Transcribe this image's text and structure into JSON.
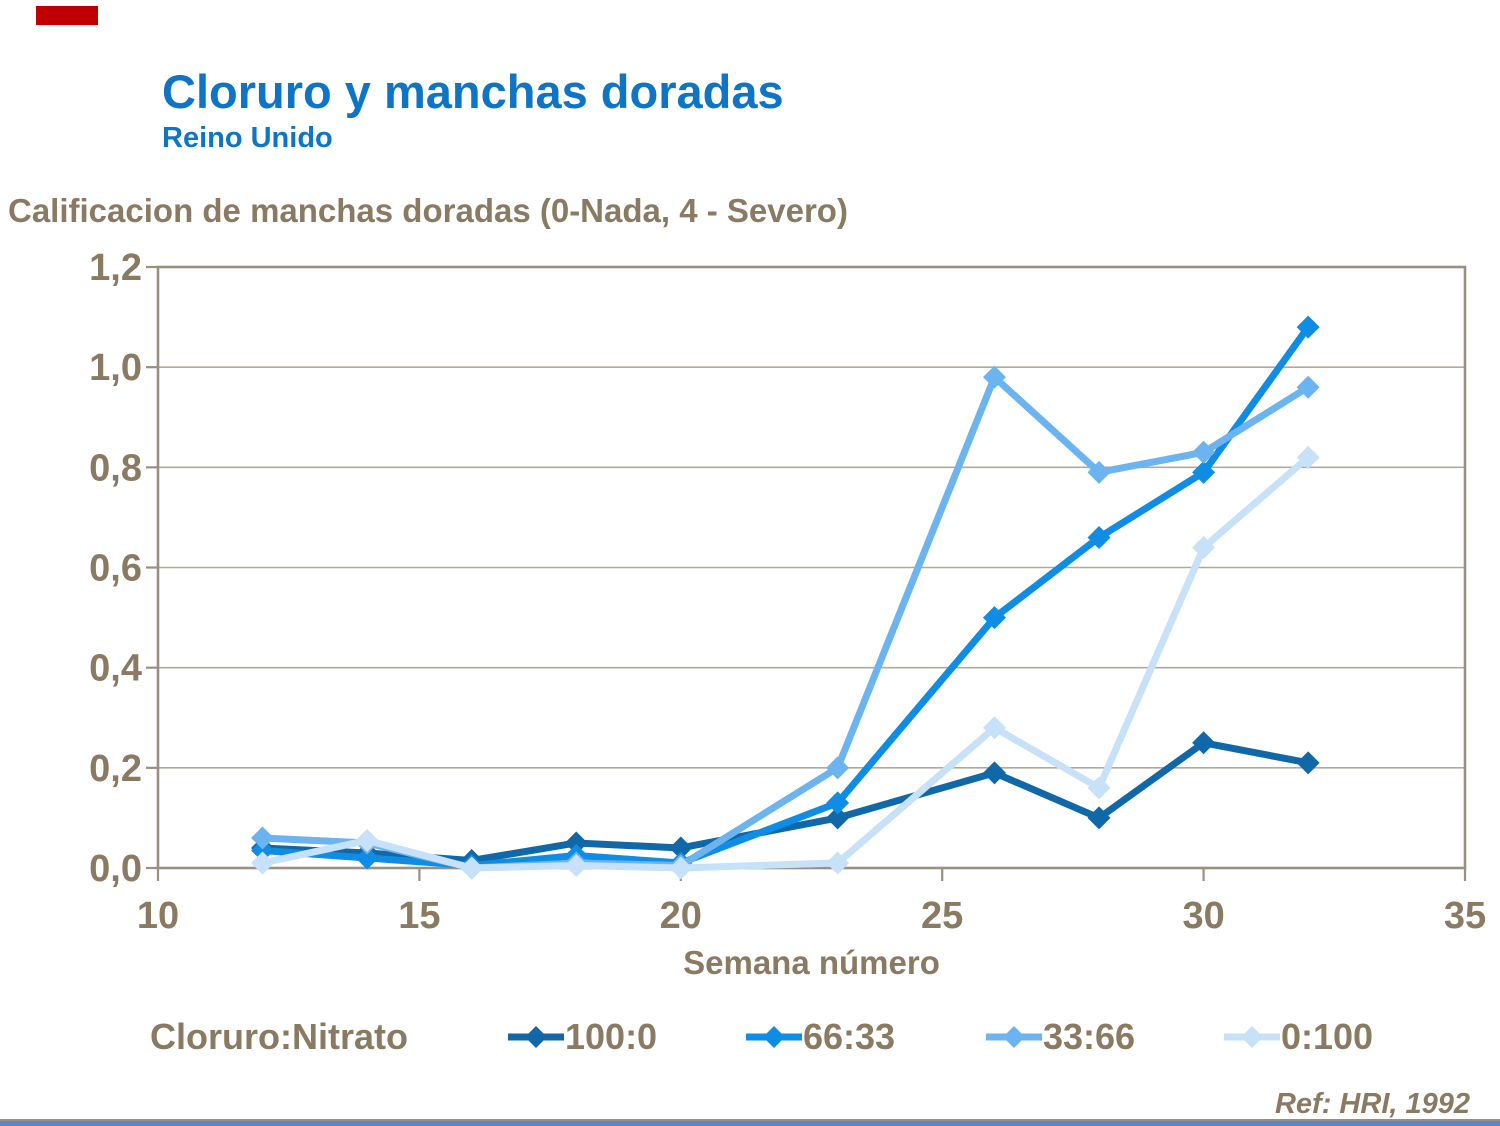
{
  "slide": {
    "title": "Cloruro y manchas doradas",
    "subtitle": "Reino Unido",
    "heading": "Calificacion de manchas doradas (0-Nada, 4 - Severo)",
    "reference": "Ref: HRI, 1992"
  },
  "colors": {
    "title_blue": "#0D74C6",
    "text_brown": "#8A7A62",
    "axis_border": "#9A9082",
    "gridline": "#B1A99E",
    "red_accent_bar": "#C00000",
    "bottom_rule": "#8F8F8F",
    "bottom_bar": "#5E86C0"
  },
  "chart_data": {
    "type": "line",
    "title": "Calificacion de manchas doradas (0-Nada, 4 - Severo)",
    "xlabel": "Semana número",
    "ylabel": "",
    "legend_title": "Cloruro:Nitrato",
    "legend_position": "bottom",
    "grid": "horizontal",
    "marker": "diamond",
    "xlim": [
      10,
      35
    ],
    "ylim": [
      0,
      1.2
    ],
    "xticks": [
      10,
      15,
      20,
      25,
      30,
      35
    ],
    "yticks": [
      0.0,
      0.2,
      0.4,
      0.6,
      0.8,
      1.0,
      1.2
    ],
    "decimal_separator": ",",
    "x": [
      12,
      14,
      16,
      18,
      20,
      23,
      26,
      28,
      30,
      32
    ],
    "series": [
      {
        "name": "100:0",
        "color": "#1168A8",
        "values": [
          0.04,
          0.03,
          0.015,
          0.05,
          0.04,
          0.1,
          0.19,
          0.1,
          0.25,
          0.21
        ]
      },
      {
        "name": "66:33",
        "color": "#0F8DE4",
        "values": [
          0.035,
          0.02,
          0.005,
          0.025,
          0.01,
          0.13,
          0.5,
          0.66,
          0.79,
          1.08
        ]
      },
      {
        "name": "33:66",
        "color": "#6BB4EF",
        "values": [
          0.06,
          0.05,
          0.0,
          0.01,
          0.005,
          0.2,
          0.98,
          0.79,
          0.83,
          0.96
        ]
      },
      {
        "name": "0:100",
        "color": "#C6E1F8",
        "values": [
          0.01,
          0.055,
          0.0,
          0.005,
          0.0,
          0.01,
          0.28,
          0.16,
          0.64,
          0.82
        ]
      }
    ]
  },
  "legend_item_lefts": [
    508,
    746,
    986,
    1224
  ]
}
